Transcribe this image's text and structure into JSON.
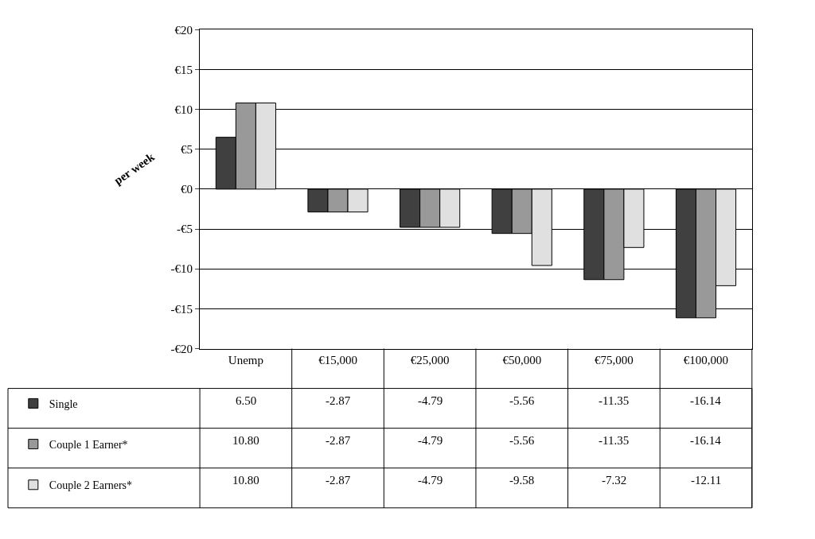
{
  "chart_data": {
    "type": "bar",
    "ylabel": "per week",
    "categories": [
      "Unemp",
      "€15,000",
      "€25,000",
      "€50,000",
      "€75,000",
      "€100,000"
    ],
    "series": [
      {
        "name": "Single",
        "color": "#404040",
        "values": [
          6.5,
          -2.87,
          -4.79,
          -5.56,
          -11.35,
          -16.14
        ],
        "value_labels": [
          "6.50",
          "-2.87",
          "-4.79",
          "-5.56",
          "-11.35",
          "-16.14"
        ]
      },
      {
        "name": "Couple 1 Earner*",
        "color": "#999999",
        "values": [
          10.8,
          -2.87,
          -4.79,
          -5.56,
          -11.35,
          -16.14
        ],
        "value_labels": [
          "10.80",
          "-2.87",
          "-4.79",
          "-5.56",
          "-11.35",
          "-16.14"
        ]
      },
      {
        "name": "Couple 2 Earners*",
        "color": "#e0e0e0",
        "values": [
          10.8,
          -2.87,
          -4.79,
          -9.58,
          -7.32,
          -12.11
        ],
        "value_labels": [
          "10.80",
          "-2.87",
          "-4.79",
          "-9.58",
          "-7.32",
          "-12.11"
        ]
      }
    ],
    "ylim": [
      -20,
      20
    ],
    "yticks": [
      {
        "value": -20,
        "label": "-€20"
      },
      {
        "value": -15,
        "label": "-€15"
      },
      {
        "value": -10,
        "label": "-€10"
      },
      {
        "value": -5,
        "label": "-€5"
      },
      {
        "value": 0,
        "label": "€0"
      },
      {
        "value": 5,
        "label": "€5"
      },
      {
        "value": 10,
        "label": "€10"
      },
      {
        "value": 15,
        "label": "€15"
      },
      {
        "value": 20,
        "label": "€20"
      }
    ],
    "grid": "y",
    "legend": "bottom left"
  }
}
